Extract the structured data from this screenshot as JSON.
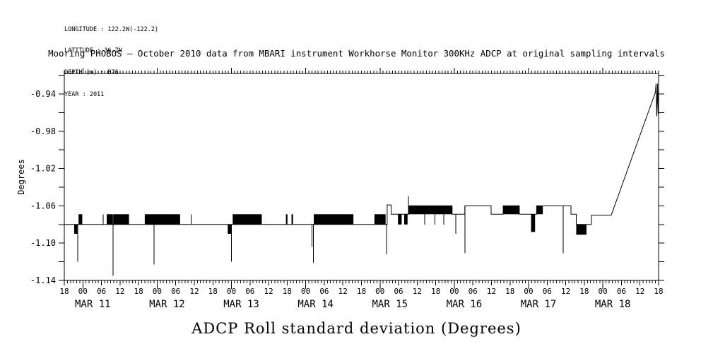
{
  "meta": {
    "lines": [
      "LONGITUDE : 122.2W(-122.2)",
      "LATITUDE : 36.7N",
      "DEPTH (m) : B76",
      "YEAR : 2011"
    ]
  },
  "chart_data": {
    "type": "line",
    "title_top": "Mooring PHOBOS – October 2010 data from MBARI instrument Workhorse Monitor 300KHz ADCP at original sampling intervals",
    "title_bottom": "ADCP Roll standard deviation (Degrees)",
    "ylabel": "Degrees",
    "series_name": "ADCP Roll standard deviation",
    "line_color": "#000000",
    "background": "#ffffff",
    "ylim": [
      -1.14,
      -0.918
    ],
    "ytick_minor_step": 0.02,
    "ytick_labels": [
      "-1.14",
      "-1.10",
      "-1.06",
      "-1.02",
      "-0.98",
      "-0.94"
    ],
    "ytick_label_values": [
      -1.14,
      -1.1,
      -1.06,
      -1.02,
      -0.98,
      -0.94
    ],
    "x_hours_total": 192,
    "x_hour_tick_step": 6,
    "x_minor_tick_step": 1,
    "x_hour_labels": [
      "18",
      "00",
      "06",
      "12",
      "18",
      "00",
      "06",
      "12",
      "18",
      "00",
      "06",
      "12",
      "18",
      "00",
      "06",
      "12",
      "18",
      "00",
      "06",
      "12",
      "18",
      "00",
      "06",
      "12",
      "18",
      "00",
      "06",
      "12",
      "18",
      "00",
      "06",
      "12",
      "18"
    ],
    "x_day_labels": [
      {
        "label": "MAR 11",
        "t": 6
      },
      {
        "label": "MAR 12",
        "t": 30
      },
      {
        "label": "MAR 13",
        "t": 54
      },
      {
        "label": "MAR 14",
        "t": 78
      },
      {
        "label": "MAR 15",
        "t": 102
      },
      {
        "label": "MAR 16",
        "t": 126
      },
      {
        "label": "MAR 17",
        "t": 150
      },
      {
        "label": "MAR 18",
        "t": 174
      }
    ],
    "series": {
      "baseline": -1.08,
      "segments": [
        [
          0,
          3.2,
          -1.08,
          -1.08,
          0
        ],
        [
          3.2,
          4.2,
          -1.09,
          -1.08,
          1
        ],
        [
          4.2,
          4.6,
          -1.08,
          -1.08,
          0
        ],
        [
          4.6,
          5.8,
          -1.08,
          -1.069,
          0
        ],
        [
          5.8,
          13.7,
          -1.08,
          -1.08,
          0
        ],
        [
          13.7,
          15.6,
          -1.08,
          -1.069,
          0
        ],
        [
          15.6,
          15.9,
          -1.08,
          -1.08,
          0
        ],
        [
          15.9,
          20.9,
          -1.08,
          -1.069,
          0
        ],
        [
          20.9,
          26,
          -1.08,
          -1.08,
          0
        ],
        [
          26,
          37.4,
          -1.08,
          -1.069,
          0
        ],
        [
          37.4,
          52.8,
          -1.08,
          -1.08,
          0
        ],
        [
          52.8,
          53.9,
          -1.09,
          -1.08,
          1
        ],
        [
          53.9,
          54.4,
          -1.08,
          -1.08,
          0
        ],
        [
          54.4,
          63.8,
          -1.08,
          -1.069,
          0
        ],
        [
          63.8,
          71.6,
          -1.08,
          -1.08,
          0
        ],
        [
          71.6,
          72.1,
          -1.08,
          -1.069,
          0
        ],
        [
          72.1,
          73.4,
          -1.08,
          -1.08,
          0
        ],
        [
          73.4,
          73.9,
          -1.08,
          -1.069,
          0
        ],
        [
          73.9,
          80.6,
          -1.08,
          -1.08,
          0
        ],
        [
          80.6,
          93.4,
          -1.08,
          -1.069,
          0
        ],
        [
          93.4,
          100.2,
          -1.08,
          -1.08,
          0
        ],
        [
          100.2,
          103.8,
          -1.08,
          -1.069,
          0
        ],
        [
          103.8,
          104.3,
          -1.08,
          -1.08,
          0
        ],
        [
          104.3,
          105.6,
          -1.059,
          -1.059,
          0
        ],
        [
          105.6,
          107.8,
          -1.069,
          -1.069,
          0
        ],
        [
          107.8,
          109,
          -1.08,
          -1.069,
          1
        ],
        [
          109,
          109.8,
          -1.069,
          -1.069,
          0
        ],
        [
          109.8,
          110.9,
          -1.08,
          -1.069,
          1
        ],
        [
          110.9,
          111.3,
          -1.069,
          -1.069,
          0
        ],
        [
          111.3,
          125.3,
          -1.069,
          -1.06,
          1
        ],
        [
          125.3,
          129.4,
          -1.069,
          -1.069,
          0
        ],
        [
          129.4,
          137.9,
          -1.06,
          -1.06,
          0
        ],
        [
          137.9,
          141.8,
          -1.069,
          -1.069,
          0
        ],
        [
          141.8,
          147,
          -1.069,
          -1.06,
          1
        ],
        [
          147,
          150.8,
          -1.069,
          -1.069,
          0
        ],
        [
          150.8,
          152.1,
          -1.088,
          -1.069,
          1
        ],
        [
          152.1,
          152.6,
          -1.069,
          -1.069,
          0
        ],
        [
          152.6,
          154.6,
          -1.069,
          -1.06,
          1
        ],
        [
          154.6,
          163.7,
          -1.06,
          -1.06,
          0
        ],
        [
          163.7,
          165.4,
          -1.069,
          -1.069,
          0
        ],
        [
          165.4,
          168.7,
          -1.091,
          -1.08,
          1
        ],
        [
          168.7,
          170.3,
          -1.08,
          -1.08,
          0
        ],
        [
          170.3,
          176.7,
          -1.07,
          -1.07,
          0
        ]
      ],
      "spikes": [
        [
          4.35,
          -1.08,
          -1.12
        ],
        [
          12.5,
          -1.08,
          -1.069
        ],
        [
          15.75,
          -1.069,
          -1.135
        ],
        [
          29,
          -1.069,
          -1.123
        ],
        [
          41,
          -1.08,
          -1.069
        ],
        [
          54,
          -1.08,
          -1.12
        ],
        [
          80.05,
          -1.08,
          -1.104
        ],
        [
          80.45,
          -1.08,
          -1.121
        ],
        [
          104.05,
          -1.08,
          -1.112
        ],
        [
          111.2,
          -1.069,
          -1.05
        ],
        [
          116.4,
          -1.06,
          -1.08
        ],
        [
          119.8,
          -1.06,
          -1.08
        ],
        [
          122.6,
          -1.06,
          -1.08
        ],
        [
          126.5,
          -1.069,
          -1.09
        ],
        [
          129.4,
          -1.06,
          -1.111
        ],
        [
          161.2,
          -1.06,
          -1.111
        ]
      ],
      "rise": [
        [
          176.7,
          -1.07
        ],
        [
          191,
          -0.938
        ],
        [
          191.15,
          -0.929
        ],
        [
          191.4,
          -0.964
        ],
        [
          191.65,
          -0.929
        ],
        [
          191.85,
          -0.962
        ],
        [
          192,
          -0.934
        ]
      ]
    }
  }
}
